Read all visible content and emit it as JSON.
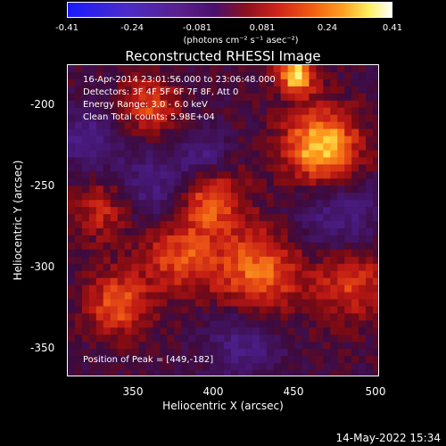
{
  "colorbar": {
    "ticks": [
      "-0.41",
      "-0.24",
      "-0.081",
      "0.081",
      "0.24",
      "0.41"
    ],
    "units": "(photons cm⁻² s⁻¹ asec⁻²)"
  },
  "title": "Reconstructed RHESSI Image",
  "info": {
    "time_range": "16-Apr-2014 23:01:56.000 to 23:06:48.000",
    "detectors": "Detectors: 3F 4F 5F 6F 7F 8F, Att 0",
    "energy": "Energy Range: 3.0 - 6.0 keV",
    "clean": "Clean    Total counts: 5.98E+04",
    "peak": "Position of Peak = [449,-182]"
  },
  "axes": {
    "xlabel": "Heliocentric X (arcsec)",
    "ylabel": "Heliocentric Y (arcsec)",
    "xticks": [
      "350",
      "400",
      "450",
      "500"
    ],
    "yticks": [
      "-200",
      "-250",
      "-300",
      "-350"
    ],
    "xlim": [
      310,
      500
    ],
    "ylim": [
      -372,
      -180
    ]
  },
  "footer": "14-May-2022 15:34"
}
